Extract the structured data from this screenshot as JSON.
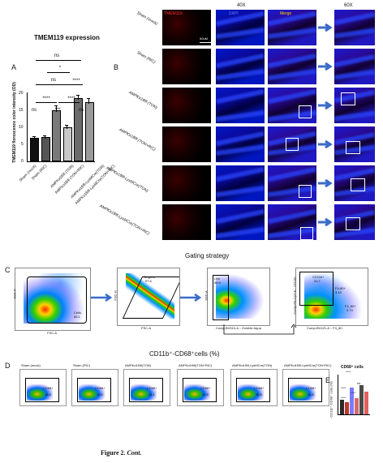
{
  "panelA": {
    "letter": "A",
    "title": "TMEM119 expression",
    "ylabel": "TMEM119 florescence color intensity (OD)",
    "yticks": [
      "0",
      "5",
      "10",
      "15",
      "20"
    ],
    "significance": [
      "ns",
      "*",
      "ns",
      "****",
      "****",
      "ns",
      "***",
      "****",
      "ns",
      "ns"
    ]
  },
  "chart_data": {
    "type": "bar",
    "title": "TMEM119 expression",
    "ylabel": "TMEM119 florescence color intensity (OD)",
    "ylim": [
      0,
      20
    ],
    "categories": [
      "Sham (mock)",
      "Sham (RIC)",
      "AMPKα1fl/fl (TON)",
      "AMPKα1fl/fl (TON+RIC)",
      "AMPKα1fl/fl-LysMCre(TON)",
      "AMPKα1fl/fl-LysMCre(TON+RIC)"
    ],
    "values": [
      6.3,
      6.5,
      14.3,
      9.3,
      17.9,
      16.8
    ],
    "errors": [
      0.8,
      0.9,
      1.6,
      1.0,
      1.2,
      1.3
    ],
    "colors": [
      "#111111",
      "#555555",
      "#7a7a7a",
      "#c8c8c8",
      "#6b6b6b",
      "#9a9a9a"
    ]
  },
  "panelB": {
    "letter": "B",
    "col_40x": "40X",
    "col_60x": "60X",
    "ch_tmem": "TMEM119",
    "ch_dapi": "DAPI",
    "ch_merge": "Merge",
    "scale": "50uM",
    "rows": [
      "Sham (mock)",
      "Sham (RIC)",
      "AMPKα1fl/fl (TON)",
      "AMPKα1fl/fl (TON+RIC)",
      "AMPKα1fl/fl-LysMCre(TON)",
      "AMPKα1fl/fl-LysMCre(TON+RIC)"
    ],
    "colors": {
      "tmem": "#ff2a2a",
      "dapi": "#3a5cff",
      "merge": "#ffd000"
    }
  },
  "panelC": {
    "letter": "C",
    "title": "Gating strategy",
    "p1_ylabel": "SSC-A",
    "p1_xlabel": "FSC-A",
    "p1_gate": "Cells",
    "p1_gate_val": "85.1",
    "p2_ylabel": "FSC-H",
    "p2_xlabel": "FSC-A",
    "p2_gate": "Singlets",
    "p2_gate_val": "97.6",
    "p3_ylabel": "SSC-A",
    "p3_xlabel": "Comp-BV510-A :: Zombie Aqua",
    "p3_gate": "Live",
    "p3_gate_val": "88.9",
    "p4_ylabel": "Comp-PE-Cy7-A :: CD11b",
    "p4_xlabel": "Comp-BV421-A :: F4_80",
    "p4_q1": "CD11b+",
    "p4_q1_val": "31.7",
    "p4_q2": "F4-80+",
    "p4_q2_val": "3.13",
    "p4_q3": "F4_80+",
    "p4_q3_val": "3.73"
  },
  "panelD": {
    "letter": "D",
    "title": "CD11b⁺-CD68⁺cells (%)",
    "plots": [
      {
        "label": "Sham (mock)",
        "gate": "CD68+",
        "value": "18.8"
      },
      {
        "label": "Sham (RIC)",
        "gate": "CD68+",
        "value": "15.5"
      },
      {
        "label": "AMPKα1fl/fl(TON)",
        "gate": "CD68+",
        "value": "34.1"
      },
      {
        "label": "AMPKα1fl/fl(TON+RIC)",
        "gate": "CD68+",
        "value": "20.8"
      },
      {
        "label": "AMPKα1fl/fl-LysMCre(TON)",
        "gate": "CD68+",
        "value": "36.8"
      },
      {
        "label": "AMPKα1fl/fl-LysMCre(TON+RIC)",
        "gate": "CD68+",
        "value": "28.8"
      }
    ]
  },
  "panelE": {
    "letter": "E",
    "title": "CD68⁺ cells",
    "ylabel": "CD11b⁺-CD68⁺ cells (%)",
    "significance": [
      "****",
      "ns",
      "****",
      "****",
      "****",
      "ns",
      "ns"
    ],
    "values": [
      18.8,
      15.5,
      34.1,
      20.8,
      36.8,
      28.8
    ],
    "colors": [
      "#2b2b2b",
      "#c0392b",
      "#7a7aff",
      "#d86a6a",
      "#4a4a4a",
      "#e06060"
    ]
  },
  "caption": {
    "label": "Figure 2.",
    "cont": "Cont."
  }
}
